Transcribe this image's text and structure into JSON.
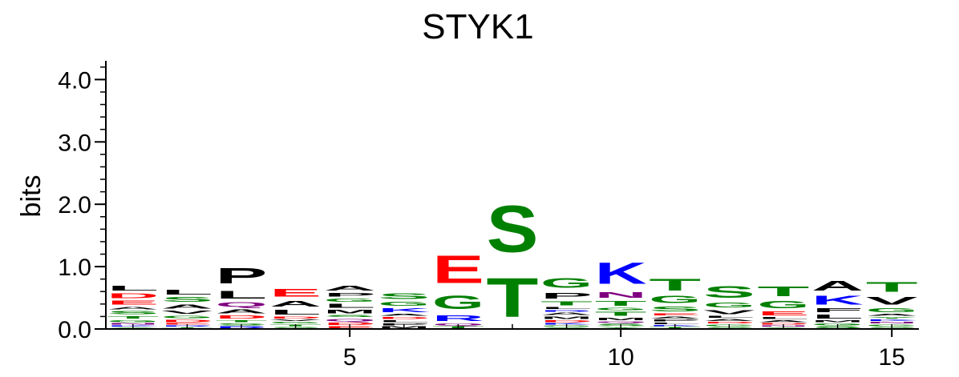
{
  "chart_data": {
    "type": "sequence-logo",
    "title": "STYK1",
    "ylabel": "bits",
    "xlabel": "",
    "ylim": [
      0,
      4.3
    ],
    "y_ticks": [
      "0.0",
      "1.0",
      "2.0",
      "3.0",
      "4.0"
    ],
    "y_tick_values": [
      0,
      1,
      2,
      3,
      4
    ],
    "x_ticks": [
      "5",
      "10",
      "15"
    ],
    "x_tick_values": [
      5,
      10,
      15
    ],
    "x_range": [
      0.5,
      15.5
    ],
    "colors": {
      "S": "#008000",
      "T": "#008000",
      "G": "#008000",
      "C": "#008000",
      "Y": "#008000",
      "N": "#800080",
      "Q": "#800080",
      "K": "#0000ff",
      "R": "#0000ff",
      "H": "#0000ff",
      "D": "#ff0000",
      "E": "#ff0000",
      "A": "#000000",
      "V": "#000000",
      "L": "#000000",
      "I": "#000000",
      "P": "#000000",
      "F": "#000000",
      "M": "#000000",
      "W": "#000000"
    },
    "positions": [
      {
        "position": 1,
        "letters": [
          [
            "Y",
            0.03
          ],
          [
            "K",
            0.03
          ],
          [
            "N",
            0.04
          ],
          [
            "G",
            0.05
          ],
          [
            "T",
            0.07
          ],
          [
            "S",
            0.08
          ],
          [
            "A",
            0.07
          ],
          [
            "E",
            0.1
          ],
          [
            "D",
            0.12
          ],
          [
            "L",
            0.12
          ]
        ]
      },
      {
        "position": 2,
        "letters": [
          [
            "T",
            0.03
          ],
          [
            "R",
            0.03
          ],
          [
            "E",
            0.04
          ],
          [
            "D",
            0.06
          ],
          [
            "G",
            0.07
          ],
          [
            "V",
            0.08
          ],
          [
            "A",
            0.1
          ],
          [
            "S",
            0.12
          ],
          [
            "L",
            0.12
          ]
        ]
      },
      {
        "position": 3,
        "letters": [
          [
            "R",
            0.05
          ],
          [
            "S",
            0.05
          ],
          [
            "T",
            0.05
          ],
          [
            "D",
            0.08
          ],
          [
            "A",
            0.1
          ],
          [
            "Q",
            0.12
          ],
          [
            "L",
            0.2
          ],
          [
            "P",
            0.4
          ]
        ]
      },
      {
        "position": 4,
        "letters": [
          [
            "S",
            0.04
          ],
          [
            "T",
            0.04
          ],
          [
            "G",
            0.04
          ],
          [
            "V",
            0.04
          ],
          [
            "D",
            0.05
          ],
          [
            "L",
            0.12
          ],
          [
            "A",
            0.15
          ],
          [
            "E",
            0.2
          ]
        ]
      },
      {
        "position": 5,
        "letters": [
          [
            "E",
            0.05
          ],
          [
            "D",
            0.06
          ],
          [
            "Q",
            0.07
          ],
          [
            "S",
            0.05
          ],
          [
            "M",
            0.09
          ],
          [
            "L",
            0.1
          ],
          [
            "G",
            0.08
          ],
          [
            "P",
            0.09
          ],
          [
            "A",
            0.12
          ]
        ]
      },
      {
        "position": 6,
        "letters": [
          [
            "M",
            0.05
          ],
          [
            "P",
            0.05
          ],
          [
            "L",
            0.05
          ],
          [
            "D",
            0.05
          ],
          [
            "A",
            0.05
          ],
          [
            "K",
            0.1
          ],
          [
            "G",
            0.1
          ],
          [
            "S",
            0.15
          ]
        ]
      },
      {
        "position": 7,
        "letters": [
          [
            "T",
            0.05
          ],
          [
            "Q",
            0.05
          ],
          [
            "R",
            0.15
          ],
          [
            "G",
            0.35
          ],
          [
            "E",
            0.7
          ]
        ]
      },
      {
        "position": 8,
        "letters": [
          [
            "T",
            1.0
          ],
          [
            "S",
            1.2
          ]
        ]
      },
      {
        "position": 9,
        "letters": [
          [
            "S",
            0.03
          ],
          [
            "G",
            0.03
          ],
          [
            "K",
            0.04
          ],
          [
            "D",
            0.05
          ],
          [
            "M",
            0.06
          ],
          [
            "A",
            0.06
          ],
          [
            "R",
            0.04
          ],
          [
            "L",
            0.05
          ],
          [
            "T",
            0.1
          ],
          [
            "P",
            0.15
          ],
          [
            "G",
            0.25
          ]
        ]
      },
      {
        "position": 10,
        "letters": [
          [
            "Y",
            0.04
          ],
          [
            "S",
            0.05
          ],
          [
            "Q",
            0.04
          ],
          [
            "M",
            0.06
          ],
          [
            "T",
            0.1
          ],
          [
            "G",
            0.06
          ],
          [
            "T",
            0.12
          ],
          [
            "N",
            0.15
          ],
          [
            "K",
            0.55
          ]
        ]
      },
      {
        "position": 11,
        "letters": [
          [
            "T",
            0.04
          ],
          [
            "K",
            0.03
          ],
          [
            "L",
            0.04
          ],
          [
            "P",
            0.05
          ],
          [
            "A",
            0.05
          ],
          [
            "E",
            0.05
          ],
          [
            "S",
            0.12
          ],
          [
            "G",
            0.18
          ],
          [
            "T",
            0.3
          ]
        ]
      },
      {
        "position": 12,
        "letters": [
          [
            "S",
            0.04
          ],
          [
            "G",
            0.04
          ],
          [
            "D",
            0.04
          ],
          [
            "A",
            0.05
          ],
          [
            "L",
            0.05
          ],
          [
            "V",
            0.1
          ],
          [
            "G",
            0.12
          ],
          [
            "S",
            0.3
          ]
        ]
      },
      {
        "position": 13,
        "letters": [
          [
            "Y",
            0.03
          ],
          [
            "N",
            0.03
          ],
          [
            "D",
            0.04
          ],
          [
            "A",
            0.05
          ],
          [
            "L",
            0.05
          ],
          [
            "E",
            0.1
          ],
          [
            "G",
            0.18
          ],
          [
            "T",
            0.25
          ]
        ]
      },
      {
        "position": 14,
        "letters": [
          [
            "S",
            0.05
          ],
          [
            "G",
            0.05
          ],
          [
            "M",
            0.05
          ],
          [
            "L",
            0.1
          ],
          [
            "F",
            0.1
          ],
          [
            "K",
            0.22
          ],
          [
            "A",
            0.25
          ]
        ]
      },
      {
        "position": 15,
        "letters": [
          [
            "S",
            0.04
          ],
          [
            "G",
            0.04
          ],
          [
            "N",
            0.04
          ],
          [
            "K",
            0.04
          ],
          [
            "Y",
            0.04
          ],
          [
            "A",
            0.05
          ],
          [
            "G",
            0.1
          ],
          [
            "V",
            0.2
          ],
          [
            "T",
            0.25
          ]
        ]
      }
    ]
  }
}
